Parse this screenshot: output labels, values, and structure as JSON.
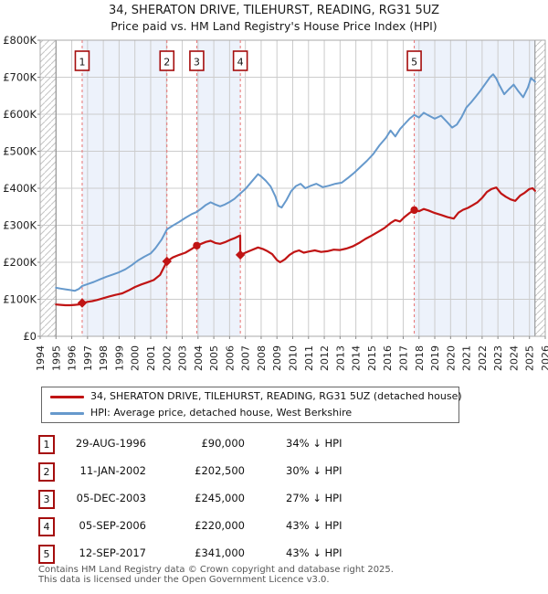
{
  "title": {
    "line1": "34, SHERATON DRIVE, TILEHURST, READING, RG31 5UZ",
    "line2": "Price paid vs. HM Land Registry's House Price Index (HPI)"
  },
  "legend": {
    "items": [
      {
        "label": "34, SHERATON DRIVE, TILEHURST, READING, RG31 5UZ (detached house)",
        "color": "#c01414"
      },
      {
        "label": "HPI: Average price, detached house, West Berkshire",
        "color": "#6699cc"
      }
    ]
  },
  "sales": [
    {
      "num": "1",
      "date": "29-AUG-1996",
      "price": "£90,000",
      "pct": "34% ↓ HPI"
    },
    {
      "num": "2",
      "date": "11-JAN-2002",
      "price": "£202,500",
      "pct": "30% ↓ HPI"
    },
    {
      "num": "3",
      "date": "05-DEC-2003",
      "price": "£245,000",
      "pct": "27% ↓ HPI"
    },
    {
      "num": "4",
      "date": "05-SEP-2006",
      "price": "£220,000",
      "pct": "43% ↓ HPI"
    },
    {
      "num": "5",
      "date": "12-SEP-2017",
      "price": "£341,000",
      "pct": "43% ↓ HPI"
    }
  ],
  "footer": {
    "line1": "Contains HM Land Registry data © Crown copyright and database right 2025.",
    "line2": "This data is licensed under the Open Government Licence v3.0."
  },
  "chart_data": {
    "type": "line",
    "x_min": 1994,
    "x_max": 2026,
    "y_min": 0,
    "y_max": 800,
    "y_unit": "£1000s",
    "grid": true,
    "y_ticks": [
      {
        "v": 0,
        "label": "£0"
      },
      {
        "v": 100,
        "label": "£100K"
      },
      {
        "v": 200,
        "label": "£200K"
      },
      {
        "v": 300,
        "label": "£300K"
      },
      {
        "v": 400,
        "label": "£400K"
      },
      {
        "v": 500,
        "label": "£500K"
      },
      {
        "v": 600,
        "label": "£600K"
      },
      {
        "v": 700,
        "label": "£700K"
      },
      {
        "v": 800,
        "label": "£800K"
      }
    ],
    "x_ticks": [
      "1994",
      "1995",
      "1996",
      "1997",
      "1998",
      "1999",
      "2000",
      "2001",
      "2002",
      "2003",
      "2004",
      "2005",
      "2006",
      "2007",
      "2008",
      "2009",
      "2010",
      "2011",
      "2012",
      "2013",
      "2014",
      "2015",
      "2016",
      "2017",
      "2018",
      "2019",
      "2020",
      "2021",
      "2022",
      "2023",
      "2024",
      "2025",
      "2026"
    ],
    "ownership_bands": [
      [
        1996.66,
        2002.03
      ],
      [
        2003.92,
        2006.68
      ],
      [
        2017.7,
        2025.35
      ]
    ],
    "no_data_regions": [
      [
        1994,
        1995
      ],
      [
        2025.35,
        2026
      ]
    ],
    "sales": [
      {
        "n": "1",
        "x": 1996.66,
        "y": 90,
        "marker": "diamond"
      },
      {
        "n": "2",
        "x": 2002.03,
        "y": 202.5,
        "marker": "diamond"
      },
      {
        "n": "3",
        "x": 2003.92,
        "y": 245,
        "marker": "circle"
      },
      {
        "n": "4",
        "x": 2006.68,
        "y": 220,
        "marker": "diamond"
      },
      {
        "n": "5",
        "x": 2017.7,
        "y": 341,
        "marker": "circle"
      }
    ],
    "series": [
      {
        "name": "HPI: Average price, detached house, West Berkshire",
        "color": "#6699cc",
        "width": 2,
        "points": [
          [
            1995.0,
            131
          ],
          [
            1995.3,
            129
          ],
          [
            1995.6,
            127
          ],
          [
            1995.9,
            125
          ],
          [
            1996.2,
            123
          ],
          [
            1996.45,
            128
          ],
          [
            1996.66,
            136
          ],
          [
            1997.0,
            141
          ],
          [
            1997.4,
            147
          ],
          [
            1997.8,
            154
          ],
          [
            1998.2,
            161
          ],
          [
            1998.6,
            167
          ],
          [
            1999.0,
            173
          ],
          [
            1999.4,
            181
          ],
          [
            1999.8,
            192
          ],
          [
            2000.2,
            205
          ],
          [
            2000.6,
            215
          ],
          [
            2001.0,
            224
          ],
          [
            2001.3,
            238
          ],
          [
            2001.7,
            262
          ],
          [
            2002.03,
            289
          ],
          [
            2002.4,
            299
          ],
          [
            2002.8,
            309
          ],
          [
            2003.2,
            320
          ],
          [
            2003.6,
            330
          ],
          [
            2003.92,
            336
          ],
          [
            2004.2,
            345
          ],
          [
            2004.5,
            355
          ],
          [
            2004.8,
            362
          ],
          [
            2005.1,
            356
          ],
          [
            2005.4,
            351
          ],
          [
            2005.7,
            356
          ],
          [
            2006.0,
            363
          ],
          [
            2006.3,
            371
          ],
          [
            2006.68,
            386
          ],
          [
            2007.0,
            398
          ],
          [
            2007.4,
            418
          ],
          [
            2007.8,
            438
          ],
          [
            2008.0,
            432
          ],
          [
            2008.3,
            420
          ],
          [
            2008.6,
            405
          ],
          [
            2008.9,
            378
          ],
          [
            2009.1,
            352
          ],
          [
            2009.3,
            348
          ],
          [
            2009.6,
            368
          ],
          [
            2009.9,
            392
          ],
          [
            2010.2,
            406
          ],
          [
            2010.5,
            412
          ],
          [
            2010.8,
            400
          ],
          [
            2011.1,
            406
          ],
          [
            2011.5,
            412
          ],
          [
            2011.9,
            403
          ],
          [
            2012.3,
            407
          ],
          [
            2012.7,
            412
          ],
          [
            2013.1,
            415
          ],
          [
            2013.5,
            428
          ],
          [
            2013.9,
            442
          ],
          [
            2014.3,
            458
          ],
          [
            2014.7,
            474
          ],
          [
            2015.1,
            492
          ],
          [
            2015.5,
            516
          ],
          [
            2015.9,
            536
          ],
          [
            2016.2,
            556
          ],
          [
            2016.5,
            540
          ],
          [
            2016.8,
            560
          ],
          [
            2017.1,
            574
          ],
          [
            2017.4,
            588
          ],
          [
            2017.7,
            598
          ],
          [
            2018.0,
            591
          ],
          [
            2018.3,
            604
          ],
          [
            2018.6,
            597
          ],
          [
            2019.0,
            588
          ],
          [
            2019.4,
            596
          ],
          [
            2019.8,
            578
          ],
          [
            2020.1,
            564
          ],
          [
            2020.4,
            572
          ],
          [
            2020.7,
            592
          ],
          [
            2021.0,
            618
          ],
          [
            2021.3,
            632
          ],
          [
            2021.6,
            648
          ],
          [
            2021.9,
            664
          ],
          [
            2022.2,
            682
          ],
          [
            2022.5,
            700
          ],
          [
            2022.7,
            708
          ],
          [
            2022.9,
            696
          ],
          [
            2023.1,
            678
          ],
          [
            2023.4,
            654
          ],
          [
            2023.7,
            668
          ],
          [
            2024.0,
            680
          ],
          [
            2024.3,
            662
          ],
          [
            2024.6,
            646
          ],
          [
            2024.9,
            672
          ],
          [
            2025.1,
            698
          ],
          [
            2025.35,
            688
          ]
        ]
      },
      {
        "name": "34, SHERATON DRIVE, TILEHURST, READING, RG31 5UZ (detached house)",
        "color": "#c01414",
        "width": 2.2,
        "points": [
          [
            1995.0,
            86
          ],
          [
            1995.3,
            85
          ],
          [
            1995.6,
            84
          ],
          [
            1995.9,
            84
          ],
          [
            1996.2,
            85
          ],
          [
            1996.45,
            86
          ],
          [
            1996.66,
            90
          ],
          [
            1997.0,
            93
          ],
          [
            1997.3,
            95
          ],
          [
            1997.6,
            98
          ],
          [
            1998.0,
            103
          ],
          [
            1998.4,
            108
          ],
          [
            1998.8,
            112
          ],
          [
            1999.2,
            116
          ],
          [
            1999.6,
            124
          ],
          [
            2000.0,
            133
          ],
          [
            2000.4,
            140
          ],
          [
            2000.8,
            146
          ],
          [
            2001.2,
            152
          ],
          [
            2001.6,
            166
          ],
          [
            2002.03,
            202.5
          ],
          [
            2002.4,
            213
          ],
          [
            2002.8,
            220
          ],
          [
            2003.2,
            226
          ],
          [
            2003.6,
            236
          ],
          [
            2003.92,
            245
          ],
          [
            2004.2,
            250
          ],
          [
            2004.5,
            255
          ],
          [
            2004.8,
            258
          ],
          [
            2005.1,
            252
          ],
          [
            2005.4,
            250
          ],
          [
            2005.7,
            254
          ],
          [
            2006.0,
            260
          ],
          [
            2006.3,
            265
          ],
          [
            2006.6,
            271
          ],
          [
            2006.67,
            272
          ],
          [
            2006.68,
            220
          ],
          [
            2007.0,
            226
          ],
          [
            2007.4,
            233
          ],
          [
            2007.8,
            240
          ],
          [
            2008.1,
            236
          ],
          [
            2008.4,
            230
          ],
          [
            2008.7,
            222
          ],
          [
            2009.0,
            206
          ],
          [
            2009.2,
            200
          ],
          [
            2009.5,
            208
          ],
          [
            2009.8,
            220
          ],
          [
            2010.1,
            228
          ],
          [
            2010.4,
            232
          ],
          [
            2010.7,
            226
          ],
          [
            2011.0,
            229
          ],
          [
            2011.4,
            232
          ],
          [
            2011.8,
            228
          ],
          [
            2012.2,
            230
          ],
          [
            2012.6,
            234
          ],
          [
            2013.0,
            233
          ],
          [
            2013.4,
            237
          ],
          [
            2013.8,
            243
          ],
          [
            2014.2,
            252
          ],
          [
            2014.6,
            263
          ],
          [
            2015.0,
            272
          ],
          [
            2015.4,
            282
          ],
          [
            2015.8,
            292
          ],
          [
            2016.2,
            306
          ],
          [
            2016.5,
            314
          ],
          [
            2016.8,
            310
          ],
          [
            2017.1,
            323
          ],
          [
            2017.4,
            333
          ],
          [
            2017.7,
            341
          ],
          [
            2018.0,
            338
          ],
          [
            2018.3,
            344
          ],
          [
            2018.6,
            340
          ],
          [
            2019.0,
            333
          ],
          [
            2019.4,
            328
          ],
          [
            2019.8,
            322
          ],
          [
            2020.2,
            318
          ],
          [
            2020.5,
            334
          ],
          [
            2020.8,
            342
          ],
          [
            2021.1,
            347
          ],
          [
            2021.4,
            354
          ],
          [
            2021.7,
            362
          ],
          [
            2022.0,
            374
          ],
          [
            2022.3,
            390
          ],
          [
            2022.6,
            398
          ],
          [
            2022.9,
            402
          ],
          [
            2023.2,
            386
          ],
          [
            2023.5,
            377
          ],
          [
            2023.8,
            370
          ],
          [
            2024.1,
            366
          ],
          [
            2024.4,
            380
          ],
          [
            2024.7,
            388
          ],
          [
            2025.0,
            398
          ],
          [
            2025.2,
            400
          ],
          [
            2025.35,
            393
          ]
        ]
      }
    ],
    "colors": {
      "band": "#edf2fb",
      "grid": "#cccccc",
      "frame": "#aaaaaa",
      "hatch": "#c4c4c4",
      "hatch_edge": "#888888",
      "sale_line": "#e87272",
      "sale_box_border": "#a50d0d",
      "marker": "#c01414",
      "tick": "#888888",
      "axis_text": "#222222"
    }
  }
}
